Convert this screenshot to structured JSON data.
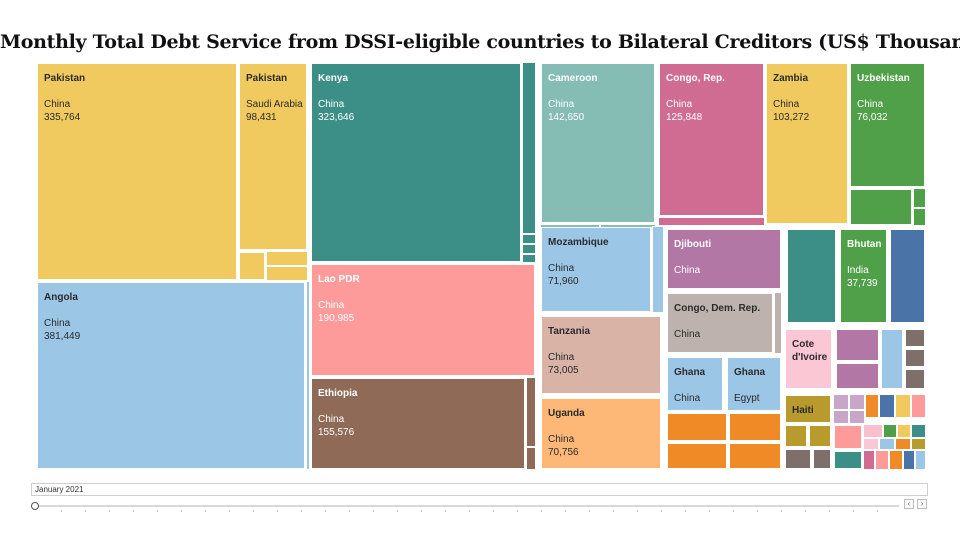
{
  "chart_data": {
    "type": "treemap",
    "title": "Monthly Total Debt Service from DSSI-eligible countries to Bilateral Creditors (US$ Thousands)",
    "tiles": [
      {
        "country": "Pakistan",
        "creditor": "China",
        "value": "335,764",
        "color": "#f0ca5e"
      },
      {
        "country": "Pakistan",
        "creditor": "Saudi Arabia",
        "value": "98,431",
        "color": "#f0ca5e"
      },
      {
        "country": "Angola",
        "creditor": "China",
        "value": "381,449",
        "color": "#9cc6e6"
      },
      {
        "country": "Kenya",
        "creditor": "China",
        "value": "323,646",
        "color": "#3c8f87"
      },
      {
        "country": "Lao PDR",
        "creditor": "China",
        "value": "190,985",
        "color": "#fd9b9a"
      },
      {
        "country": "Ethiopia",
        "creditor": "China",
        "value": "155,576",
        "color": "#8e6a57"
      },
      {
        "country": "Cameroon",
        "creditor": "China",
        "value": "142,650",
        "color": "#85bdb5"
      },
      {
        "country": "Congo, Rep.",
        "creditor": "China",
        "value": "125,848",
        "color": "#d06b92"
      },
      {
        "country": "Zambia",
        "creditor": "China",
        "value": "103,272",
        "color": "#f0ca5e"
      },
      {
        "country": "Uzbekistan",
        "creditor": "China",
        "value": "76,032",
        "color": "#4fa048"
      },
      {
        "country": "Mozambique",
        "creditor": "China",
        "value": "71,960",
        "color": "#9cc6e6"
      },
      {
        "country": "Djibouti",
        "creditor": "China",
        "value": "",
        "color": "#b277a5"
      },
      {
        "country": "Congo, Dem. Rep.",
        "creditor": "China",
        "value": "",
        "color": "#bdb2ad"
      },
      {
        "country": "Tanzania",
        "creditor": "China",
        "value": "73,005",
        "color": "#d8b3a6"
      },
      {
        "country": "Uganda",
        "creditor": "China",
        "value": "70,756",
        "color": "#fdb877"
      },
      {
        "country": "Ghana",
        "creditor": "China",
        "value": "",
        "color": "#9cc6e6"
      },
      {
        "country": "Ghana",
        "creditor": "Egypt",
        "value": "",
        "color": "#9cc6e6"
      },
      {
        "country": "Bhutan",
        "creditor": "India",
        "value": "37,739",
        "color": "#4fa048"
      },
      {
        "country": "Cote d'Ivoire",
        "creditor": "",
        "value": "",
        "color": "#fbc7d4"
      },
      {
        "country": "Haiti",
        "creditor": "",
        "value": "",
        "color": "#b89b2c"
      }
    ]
  },
  "filter": {
    "period": "January 2021"
  },
  "slider": {
    "prev_glyph": "‹",
    "next_glyph": "›"
  }
}
